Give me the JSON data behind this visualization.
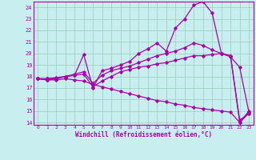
{
  "xlabel": "Windchill (Refroidissement éolien,°C)",
  "xlim": [
    -0.5,
    23.5
  ],
  "ylim": [
    13.8,
    24.5
  ],
  "xticks": [
    0,
    1,
    2,
    3,
    4,
    5,
    6,
    7,
    8,
    9,
    10,
    11,
    12,
    13,
    14,
    15,
    16,
    17,
    18,
    19,
    20,
    21,
    22,
    23
  ],
  "yticks": [
    14,
    15,
    16,
    17,
    18,
    19,
    20,
    21,
    22,
    23,
    24
  ],
  "bg_color": "#c8eef0",
  "line_color": "#aa00aa",
  "grid_color": "#99ccbb",
  "curves": [
    [
      17.8,
      17.7,
      17.8,
      18.0,
      18.1,
      19.9,
      17.0,
      18.5,
      18.7,
      19.0,
      19.3,
      20.0,
      20.4,
      20.9,
      20.2,
      22.2,
      23.0,
      24.2,
      24.5,
      23.5,
      20.0,
      19.8,
      14.0,
      15.0
    ],
    [
      17.8,
      17.8,
      17.8,
      18.0,
      18.1,
      18.2,
      17.1,
      17.6,
      18.0,
      18.4,
      18.6,
      18.8,
      18.9,
      19.1,
      19.2,
      19.4,
      19.6,
      19.8,
      19.8,
      19.9,
      20.0,
      19.8,
      14.2,
      14.8
    ],
    [
      17.8,
      17.8,
      17.9,
      18.0,
      18.2,
      18.4,
      17.4,
      18.1,
      18.5,
      18.7,
      18.9,
      19.2,
      19.5,
      19.8,
      20.0,
      20.2,
      20.5,
      20.9,
      20.7,
      20.3,
      20.0,
      19.7,
      18.8,
      14.9
    ],
    [
      17.8,
      17.7,
      17.7,
      17.8,
      17.7,
      17.6,
      17.3,
      17.1,
      16.9,
      16.7,
      16.5,
      16.3,
      16.1,
      15.9,
      15.8,
      15.6,
      15.5,
      15.3,
      15.2,
      15.1,
      15.0,
      14.9,
      14.0,
      14.8
    ]
  ]
}
